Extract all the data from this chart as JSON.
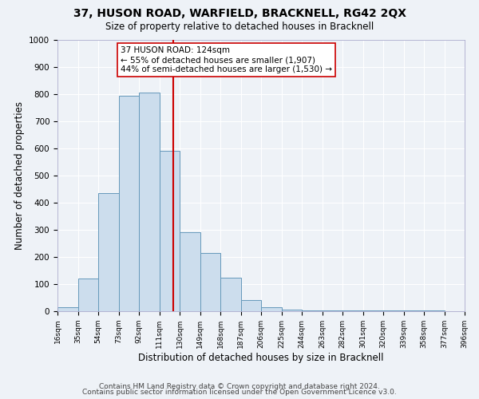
{
  "title": "37, HUSON ROAD, WARFIELD, BRACKNELL, RG42 2QX",
  "subtitle": "Size of property relative to detached houses in Bracknell",
  "xlabel": "Distribution of detached houses by size in Bracknell",
  "ylabel": "Number of detached properties",
  "bin_edges": [
    16,
    35,
    54,
    73,
    92,
    111,
    130,
    149,
    168,
    187,
    206,
    225,
    244,
    263,
    282,
    301,
    320,
    339,
    358,
    377,
    396
  ],
  "bin_heights": [
    15,
    120,
    435,
    795,
    805,
    590,
    290,
    215,
    125,
    40,
    15,
    5,
    3,
    3,
    3,
    3,
    3,
    3,
    3
  ],
  "bar_facecolor": "#ccdded",
  "bar_edgecolor": "#6699bb",
  "vline_x": 124,
  "vline_color": "#cc0000",
  "annotation_text": "37 HUSON ROAD: 124sqm\n← 55% of detached houses are smaller (1,907)\n44% of semi-detached houses are larger (1,530) →",
  "annotation_box_edgecolor": "#cc0000",
  "annotation_box_facecolor": "white",
  "ylim": [
    0,
    1000
  ],
  "yticks": [
    0,
    100,
    200,
    300,
    400,
    500,
    600,
    700,
    800,
    900,
    1000
  ],
  "tick_labels": [
    "16sqm",
    "35sqm",
    "54sqm",
    "73sqm",
    "92sqm",
    "111sqm",
    "130sqm",
    "149sqm",
    "168sqm",
    "187sqm",
    "206sqm",
    "225sqm",
    "244sqm",
    "263sqm",
    "282sqm",
    "301sqm",
    "320sqm",
    "339sqm",
    "358sqm",
    "377sqm",
    "396sqm"
  ],
  "footer_line1": "Contains HM Land Registry data © Crown copyright and database right 2024.",
  "footer_line2": "Contains public sector information licensed under the Open Government Licence v3.0.",
  "background_color": "#eef2f7",
  "grid_color": "#ffffff",
  "title_fontsize": 10,
  "subtitle_fontsize": 8.5,
  "axis_label_fontsize": 8.5,
  "tick_fontsize": 6.5,
  "ytick_fontsize": 7.5,
  "footer_fontsize": 6.5,
  "annotation_fontsize": 7.5
}
